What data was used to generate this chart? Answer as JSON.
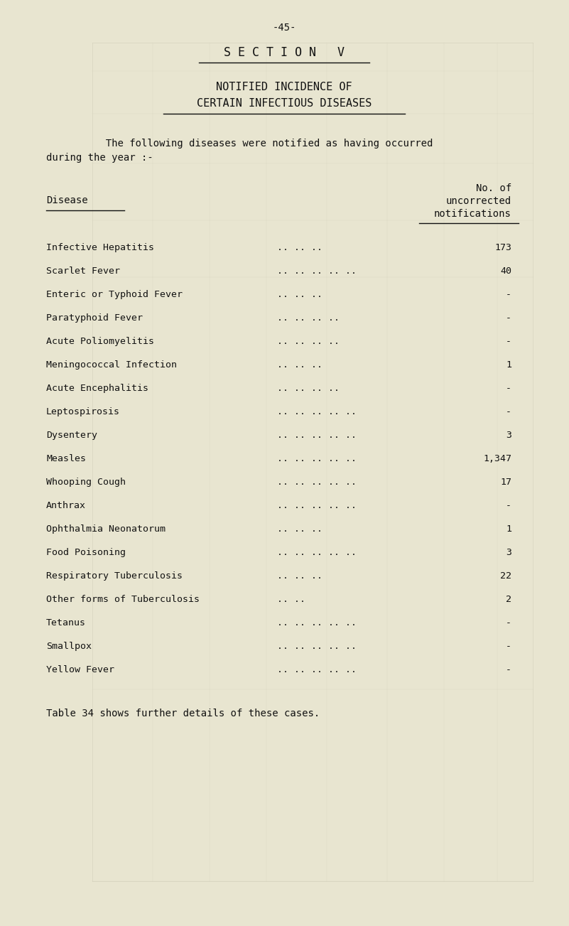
{
  "bg_color": "#e8e5d0",
  "page_number": "-45-",
  "section_title": "S E C T I O N   V",
  "subtitle1": "NOTIFIED INCIDENCE OF",
  "subtitle2": "CERTAIN INFECTIOUS DISEASES",
  "intro_line1": "          The following diseases were notified as having occurred",
  "intro_line2": "during the year :-",
  "col_header_line1": "No. of",
  "col_header_line2": "uncorrected",
  "col_header_line3": "notifications",
  "col1_header": "Disease",
  "footer": "Table 34 shows further details of these cases.",
  "diseases": [
    {
      "name": "Infective Hepatitis",
      "dots": ".. .. ..",
      "value": "173"
    },
    {
      "name": "Scarlet Fever",
      "dots": ".. .. .. .. ..",
      "value": "40"
    },
    {
      "name": "Enteric or Typhoid Fever",
      "dots": ".. .. ..",
      "value": "-"
    },
    {
      "name": "Paratyphoid Fever",
      "dots": ".. .. .. ..",
      "value": "-"
    },
    {
      "name": "Acute Poliomyelitis",
      "dots": ".. .. .. ..",
      "value": "-"
    },
    {
      "name": "Meningococcal Infection",
      "dots": ".. .. ..",
      "value": "1"
    },
    {
      "name": "Acute Encephalitis",
      "dots": ".. .. .. ..",
      "value": "-"
    },
    {
      "name": "Leptospirosis",
      "dots": ".. .. .. .. ..",
      "value": "-"
    },
    {
      "name": "Dysentery",
      "dots": ".. .. .. .. ..",
      "value": "3"
    },
    {
      "name": "Measles",
      "dots": ".. .. .. .. ..",
      "value": "1,347"
    },
    {
      "name": "Whooping Cough",
      "dots": ".. .. .. .. ..",
      "value": "17"
    },
    {
      "name": "Anthrax",
      "dots": ".. .. .. .. ..",
      "value": "-"
    },
    {
      "name": "Ophthalmia Neonatorum",
      "dots": ".. .. ..",
      "value": "1"
    },
    {
      "name": "Food Poisoning",
      "dots": ".. .. .. .. ..",
      "value": "3"
    },
    {
      "name": "Respiratory Tuberculosis",
      "dots": ".. .. ..",
      "value": "22"
    },
    {
      "name": "Other forms of Tuberculosis",
      "dots": ".. ..",
      "value": "2"
    },
    {
      "name": "Tetanus",
      "dots": ".. .. .. .. ..",
      "value": "-"
    },
    {
      "name": "Smallpox",
      "dots": ".. .. .. .. ..",
      "value": "-"
    },
    {
      "name": "Yellow Fever",
      "dots": ".. .. .. .. ..",
      "value": "-"
    }
  ],
  "font_size_page_num": 10,
  "font_size_section": 12,
  "font_size_subtitle": 11,
  "font_size_intro": 10,
  "font_size_header": 10,
  "font_size_data": 9.5,
  "font_size_footer": 10,
  "text_color": "#111111"
}
